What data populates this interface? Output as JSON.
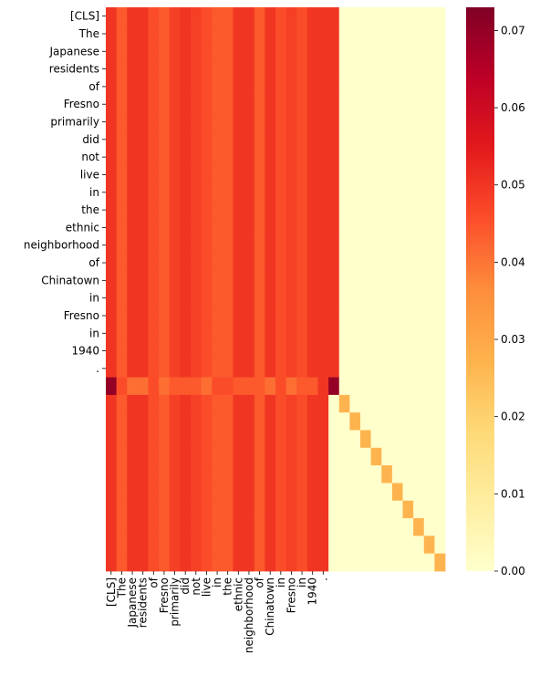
{
  "chart_data": {
    "type": "heatmap",
    "title": "",
    "xlabel": "",
    "ylabel": "",
    "tokens": [
      "[CLS]",
      "The",
      "Japanese",
      "residents",
      "of",
      "Fresno",
      "primarily",
      "did",
      "not",
      "live",
      "in",
      "the",
      "ethnic",
      "neighborhood",
      "of",
      "Chinatown",
      "in",
      "Fresno",
      "in",
      "1940",
      "."
    ],
    "row_labels": [
      "[CLS]",
      "The",
      "Japanese",
      "residents",
      "of",
      "Fresno",
      "primarily",
      "did",
      "not",
      "live",
      "in",
      "the",
      "ethnic",
      "neighborhood",
      "of",
      "Chinatown",
      "in",
      "Fresno",
      "in",
      "1940",
      "."
    ],
    "col_labels": [
      "[CLS]",
      "The",
      "Japanese",
      "residents",
      "of",
      "Fresno",
      "primarily",
      "did",
      "not",
      "live",
      "in",
      "the",
      "ethnic",
      "neighborhood",
      "of",
      "Chinatown",
      "in",
      "Fresno",
      "in",
      "1940",
      "."
    ],
    "n_rows": 32,
    "n_cols": 32,
    "text_token_count": 21,
    "content_column_values": [
      0.05,
      0.044,
      0.05,
      0.05,
      0.046,
      0.044,
      0.048,
      0.05,
      0.048,
      0.046,
      0.044,
      0.044,
      0.05,
      0.05,
      0.044,
      0.05,
      0.046,
      0.048,
      0.046,
      0.05,
      0.05
    ],
    "special_row_index": 21,
    "special_row_values": [
      0.07,
      0.046,
      0.041,
      0.041,
      0.046,
      0.041,
      0.044,
      0.044,
      0.044,
      0.041,
      0.046,
      0.046,
      0.044,
      0.044,
      0.044,
      0.041,
      0.046,
      0.041,
      0.044,
      0.044,
      0.05,
      0.07
    ],
    "padding_diagonal_value": 0.027,
    "background_value": 0.0,
    "colorbar": {
      "min": 0.0,
      "max": 0.073,
      "ticks": [
        "0.00",
        "0.01",
        "0.02",
        "0.03",
        "0.04",
        "0.05",
        "0.06",
        "0.07"
      ],
      "colormap": "YlOrRd"
    },
    "colormap_stops": [
      "#ffffcc",
      "#ffeda0",
      "#fed976",
      "#feb24c",
      "#fd8d3c",
      "#fc4e2a",
      "#e31a1c",
      "#bd0026",
      "#800026"
    ],
    "grid": false
  }
}
